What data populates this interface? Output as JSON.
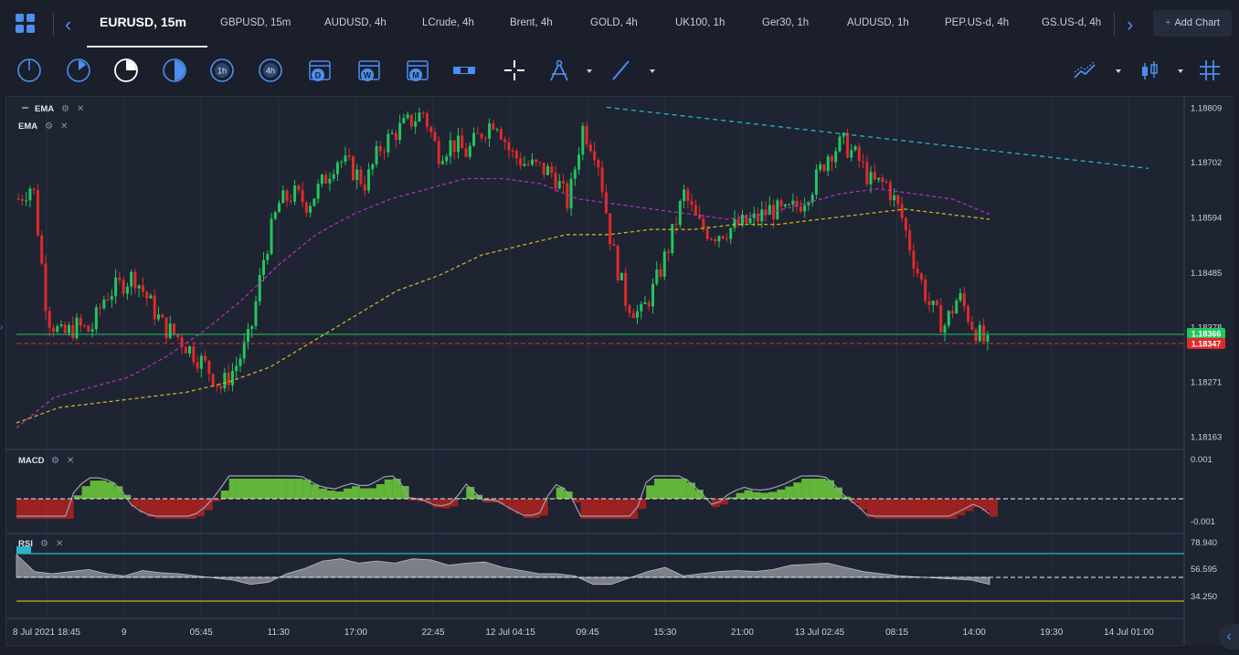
{
  "tabs": {
    "active": "EURUSD, 15m",
    "items": [
      "GBPUSD, 15m",
      "AUDUSD, 4h",
      "LCrude, 4h",
      "Brent, 4h",
      "GOLD, 4h",
      "UK100, 1h",
      "Ger30, 1h",
      "AUDUSD, 1h",
      "PEP.US-d, 4h",
      "GS.US-d, 4h"
    ],
    "add_chart": "Add Chart"
  },
  "toolbar": {
    "timeframes": [
      "1m",
      "5m",
      "15m",
      "30m",
      "1h",
      "4h",
      "D",
      "W",
      "M"
    ],
    "period_letters": {
      "d": "D",
      "w": "W",
      "m": "M"
    },
    "period_hours": {
      "h1": "1h",
      "h4": "4h"
    },
    "tools": [
      "range-tool",
      "crosshair-tool",
      "drawing-tools",
      "line-tool",
      "indicators",
      "chart-type",
      "grid-toggle"
    ]
  },
  "indicators": {
    "ema1": "EMA",
    "ema2": "EMA",
    "macd": "MACD",
    "rsi": "RSI"
  },
  "colors": {
    "bull": "#22c55e",
    "bear": "#e02a2a",
    "ema_fast": "#b12fb7",
    "ema_slow": "#c8b423",
    "trend": "#2ab3c6",
    "bid": "#22c55e",
    "ask": "#e02a2a",
    "accent": "#4d8ef0"
  },
  "price_labels": {
    "bid": "1.18366",
    "ask": "1.18347"
  },
  "chart_data": {
    "type": "candlestick",
    "symbol": "EURUSD",
    "interval": "15m",
    "y_ticks": [
      "1.18809",
      "1.18702",
      "1.18594",
      "1.18485",
      "1.18378",
      "1.18271",
      "1.18163"
    ],
    "ylim": [
      1.1813,
      1.1883
    ],
    "x_ticks": [
      "8 Jul 2021 18:45",
      "9",
      "05:45",
      "11:30",
      "17:00",
      "22:45",
      "12 Jul 04:15",
      "09:45",
      "15:30",
      "21:00",
      "13 Jul 02:45",
      "08:15",
      "14:00",
      "19:30",
      "14 Jul 01:00"
    ],
    "close_path": [
      1.1863,
      1.1866,
      1.184,
      1.1836,
      1.1838,
      1.1837,
      1.1844,
      1.1846,
      1.1848,
      1.1843,
      1.1838,
      1.1836,
      1.1833,
      1.183,
      1.1826,
      1.183,
      1.1836,
      1.1852,
      1.1862,
      1.1864,
      1.1862,
      1.1866,
      1.1871,
      1.1869,
      1.1866,
      1.1873,
      1.1876,
      1.1878,
      1.188,
      1.1872,
      1.1874,
      1.1872,
      1.1876,
      1.1879,
      1.1872,
      1.187,
      1.1869,
      1.1868,
      1.1862,
      1.1877,
      1.1872,
      1.1854,
      1.1843,
      1.184,
      1.1846,
      1.1854,
      1.1864,
      1.1858,
      1.1856,
      1.1857,
      1.1858,
      1.1859,
      1.1861,
      1.186,
      1.1862,
      1.1866,
      1.1872,
      1.1874,
      1.1871,
      1.1866,
      1.1866,
      1.186,
      1.185,
      1.1842,
      1.1838,
      1.1844,
      1.1838,
      1.1834
    ],
    "ema_fast_path": [
      1.1818,
      1.1824,
      1.1826,
      1.1828,
      1.1832,
      1.1837,
      1.1843,
      1.185,
      1.1856,
      1.186,
      1.1863,
      1.1865,
      1.1867,
      1.1867,
      1.1866,
      1.1863,
      1.1862,
      1.1861,
      1.186,
      1.1859,
      1.186,
      1.1862,
      1.1864,
      1.1865,
      1.1864,
      1.1863,
      1.186
    ],
    "ema_slow_path": [
      1.1819,
      1.1822,
      1.1823,
      1.1824,
      1.1825,
      1.1827,
      1.183,
      1.1835,
      1.184,
      1.1845,
      1.1848,
      1.1852,
      1.1854,
      1.1856,
      1.1856,
      1.1857,
      1.1857,
      1.1858,
      1.1858,
      1.1859,
      1.186,
      1.1861,
      1.186,
      1.1859
    ],
    "trendline": [
      {
        "x": "12 Jul 09:45",
        "y": 1.1881
      },
      {
        "x": "13 Jul 14:00",
        "y": 1.1869
      }
    ],
    "macd_ticks": [
      "0.001",
      "-0.001"
    ],
    "rsi_ticks": [
      "78.940",
      "56.595",
      "34.250"
    ],
    "rsi_levels": [
      78.94,
      56.595,
      34.25
    ],
    "rsi_path": [
      78,
      62,
      60,
      62,
      64,
      60,
      58,
      63,
      61,
      60,
      58,
      56,
      54,
      50,
      52,
      60,
      65,
      72,
      74,
      70,
      72,
      70,
      74,
      73,
      68,
      70,
      71,
      66,
      63,
      60,
      60,
      58,
      50,
      50,
      56,
      62,
      66,
      58,
      60,
      62,
      63,
      62,
      64,
      68,
      69,
      70,
      66,
      62,
      60,
      58,
      57,
      56,
      55,
      54,
      50
    ]
  }
}
